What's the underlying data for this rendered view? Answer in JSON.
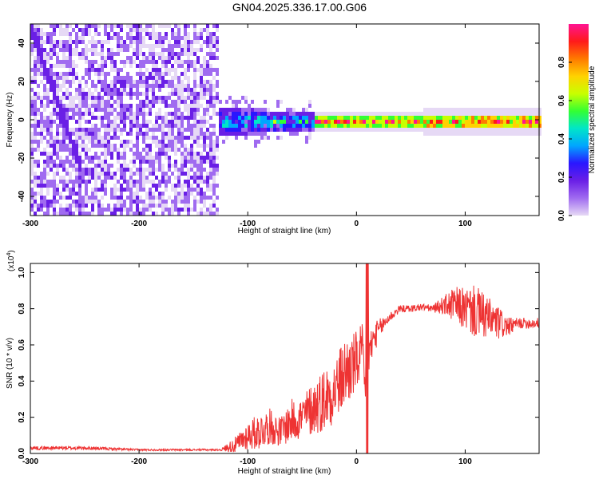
{
  "title": "GN04.2025.336.17.00.G06",
  "chart_data": [
    {
      "type": "heatmap",
      "xlabel": "Height of straight line (km)",
      "ylabel": "Frequency (Hz)",
      "xlim": [
        -300,
        168
      ],
      "ylim": [
        -50,
        50
      ],
      "x_ticks": [
        "-300",
        "-200",
        "-100",
        "0",
        "100"
      ],
      "x_tick_values": [
        -300,
        -200,
        -100,
        0,
        100
      ],
      "y_ticks": [
        "-40",
        "-20",
        "0",
        "20",
        "40"
      ],
      "y_tick_values": [
        -40,
        -20,
        0,
        20,
        40
      ],
      "colorbar": {
        "label": "Normalized spectral amplitude",
        "range": [
          0,
          1
        ],
        "ticks": [
          "0.0",
          "0.2",
          "0.4",
          "0.6",
          "0.8"
        ],
        "tick_values": [
          0.0,
          0.2,
          0.4,
          0.6,
          0.8
        ],
        "colors": [
          "#e6d9f5",
          "#a06bf0",
          "#6a1fe6",
          "#2a16ff",
          "#00a6ff",
          "#00e6c8",
          "#33ff33",
          "#c8ff00",
          "#ffd200",
          "#ff7a00",
          "#ff1a1a",
          "#ff1493"
        ]
      },
      "regions": [
        {
          "x_range": [
            -300,
            -128
          ],
          "frequency_range": [
            -50,
            50
          ],
          "amplitude": [
            0.0,
            0.2
          ],
          "description_color": "#7a35f0"
        },
        {
          "x_range": [
            -128,
            -40
          ],
          "frequency_center": 0,
          "frequency_halfwidth": 8,
          "amplitude": [
            0.2,
            0.6
          ]
        },
        {
          "x_range": [
            -40,
            168
          ],
          "frequency_center": 0,
          "frequency_halfwidth": 2,
          "amplitude": [
            0.6,
            1.0
          ]
        }
      ]
    },
    {
      "type": "line",
      "xlabel": "Height of straight line (km)",
      "ylabel": "SNR (10 * v/v)",
      "y_multiplier": "(x10",
      "y_multiplier_exp": "4",
      "y_multiplier_close": ")",
      "xlim": [
        -300,
        168
      ],
      "ylim": [
        0,
        1.05
      ],
      "x_ticks": [
        "-300",
        "-200",
        "-100",
        "0",
        "100"
      ],
      "x_tick_values": [
        -300,
        -200,
        -100,
        0,
        100
      ],
      "y_ticks": [
        "0.0",
        "0.2",
        "0.4",
        "0.6",
        "0.8",
        "1.0"
      ],
      "y_tick_values": [
        0.0,
        0.2,
        0.4,
        0.6,
        0.8,
        1.0
      ],
      "line_color": "#ee3333",
      "series": [
        {
          "x": [
            -300,
            -250,
            -200,
            -150,
            -125,
            -110,
            -100,
            -90,
            -80,
            -70,
            -60,
            -50,
            -40,
            -30,
            -20,
            -10,
            0,
            5,
            8,
            10,
            12,
            15,
            20,
            30,
            40,
            50,
            60,
            70,
            80,
            90,
            100,
            110,
            120,
            130,
            140,
            150,
            160,
            168
          ],
          "y": [
            0.03,
            0.03,
            0.02,
            0.02,
            0.02,
            0.05,
            0.1,
            0.12,
            0.15,
            0.12,
            0.18,
            0.2,
            0.25,
            0.3,
            0.35,
            0.45,
            0.5,
            0.58,
            0.3,
            0.65,
            0.55,
            0.62,
            0.68,
            0.75,
            0.8,
            0.8,
            0.81,
            0.8,
            0.82,
            0.82,
            0.8,
            0.78,
            0.75,
            0.72,
            0.7,
            0.72,
            0.72,
            0.72
          ],
          "spread": [
            0.01,
            0.01,
            0.005,
            0.005,
            0.005,
            0.05,
            0.08,
            0.1,
            0.1,
            0.08,
            0.12,
            0.12,
            0.15,
            0.18,
            0.18,
            0.2,
            0.18,
            0.15,
            0.2,
            0.3,
            0.12,
            0.1,
            0.06,
            0.03,
            0.02,
            0.02,
            0.02,
            0.02,
            0.05,
            0.1,
            0.12,
            0.15,
            0.12,
            0.1,
            0.05,
            0.03,
            0.03,
            0.03
          ]
        }
      ]
    }
  ]
}
